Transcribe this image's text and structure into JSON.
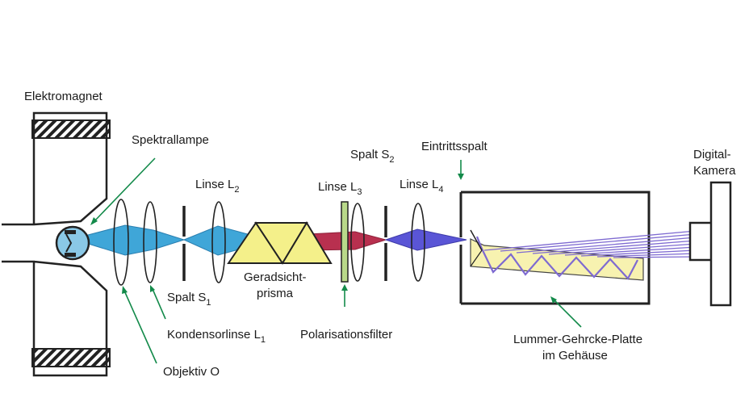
{
  "labels": {
    "elektromagnet": "Elektromagnet",
    "spektrallampe": "Spektrallampe",
    "linse_l2": {
      "text": "Linse L",
      "sub": "2"
    },
    "spalt_s2": {
      "text": "Spalt S",
      "sub": "2"
    },
    "eintrittsspalt": "Eintrittsspalt",
    "linse_l3": {
      "text": "Linse L",
      "sub": "3"
    },
    "linse_l4": {
      "text": "Linse L",
      "sub": "4"
    },
    "digital_kamera": {
      "line1": "Digital-",
      "line2": "Kamera"
    },
    "geradsicht_prisma": {
      "line1": "Geradsicht-",
      "line2": "prisma"
    },
    "spalt_s1": {
      "text": "Spalt S",
      "sub": "1"
    },
    "kondensorlinse_l1": {
      "text": "Kondensorlinse L",
      "sub": "1"
    },
    "polarisationsfilter": "Polarisationsfilter",
    "lummer_gehrcke_platte": {
      "line1": "Lummer-Gehrcke-Platte",
      "line2": "im Gehäuse"
    },
    "objektiv_o": "Objektiv O"
  },
  "colors": {
    "beam_blue": "#3fa6d8",
    "beam_red": "#b8304f",
    "beam_violet": "#5a55d6",
    "prism_yellow": "#f4f08a",
    "plate_yellow": "#f7f2b0",
    "filter_green": "#b9d98a",
    "pointer_green": "#138a4a",
    "rays_purple": "#7e6ad1"
  }
}
